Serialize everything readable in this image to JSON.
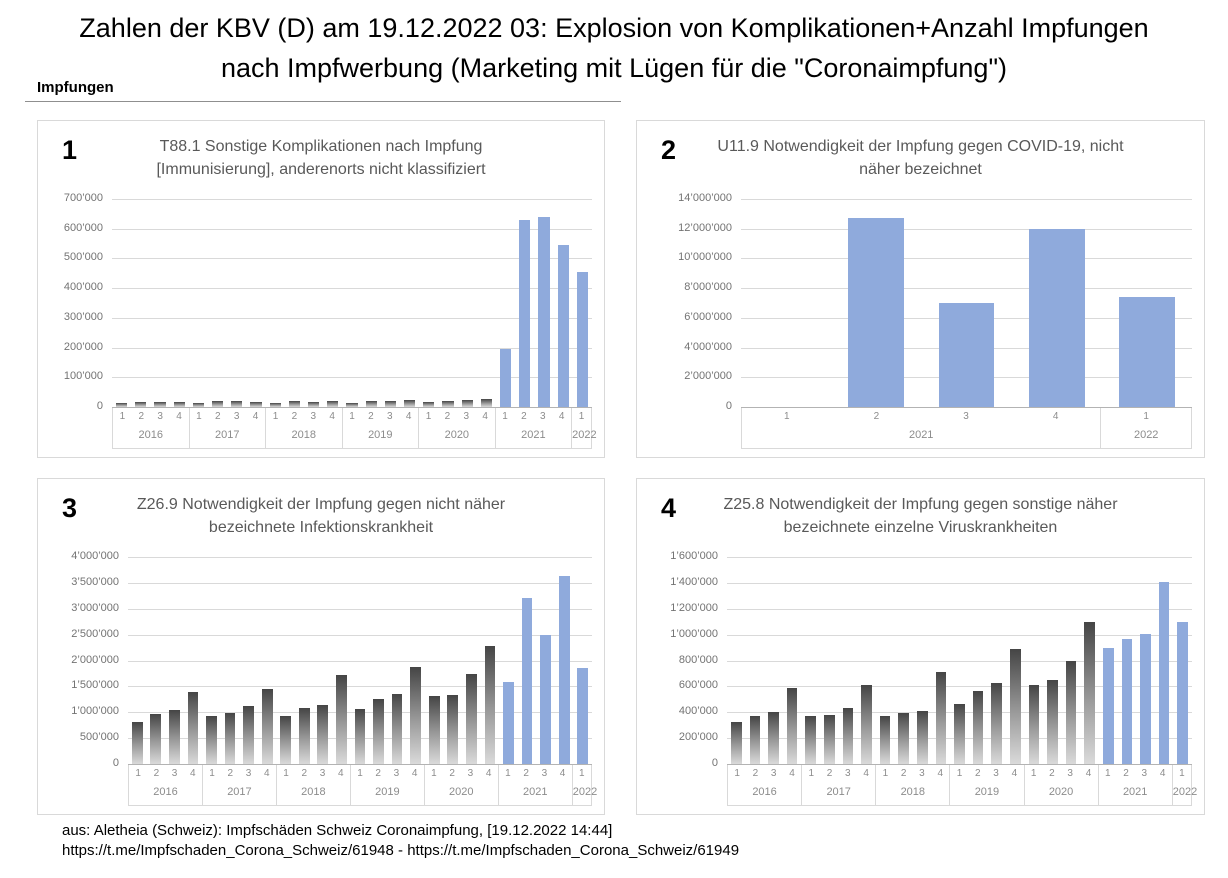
{
  "page": {
    "title_line1": "Zahlen der KBV (D) am 19.12.2022 03: Explosion von Komplikationen+Anzahl Impfungen",
    "title_line2": "nach Impfwerbung (Marketing mit Lügen für die \"Coronaimpfung\")",
    "section_label": "Impfungen",
    "footer_line1": "aus: Aletheia (Schweiz): Impfschäden Schweiz Coronaimpfung, [19.12.2022 14:44]",
    "footer_line2": "https://t.me/Impfschaden_Corona_Schweiz/61948 - https://t.me/Impfschaden_Corona_Schweiz/61949"
  },
  "colors": {
    "bar_highlight_blue": "#8faadc",
    "bar_gray_gradient_top": "#454545",
    "bar_gray_gradient_bottom": "#dadada",
    "gridline": "#d9d9d9",
    "axis_line": "#b3b3b3",
    "chart_title_text": "#595959",
    "tick_text": "#737373"
  },
  "chart_data": [
    {
      "type": "bar",
      "number": "1",
      "title": "T88.1 Sonstige Komplikationen nach Impfung [Immunisierung], anderenorts nicht klassifiziert",
      "xlabel": "",
      "ylabel": "",
      "ylim": [
        0,
        700000
      ],
      "ystep": 100000,
      "grid": true,
      "legend": false,
      "yticks": [
        "700’000",
        "600’000",
        "500’000",
        "400’000",
        "300’000",
        "200’000",
        "100’000",
        "0"
      ],
      "groups": [
        {
          "year": "2016",
          "quarters": [
            "1",
            "2",
            "3",
            "4"
          ]
        },
        {
          "year": "2017",
          "quarters": [
            "1",
            "2",
            "3",
            "4"
          ]
        },
        {
          "year": "2018",
          "quarters": [
            "1",
            "2",
            "3",
            "4"
          ]
        },
        {
          "year": "2019",
          "quarters": [
            "1",
            "2",
            "3",
            "4"
          ]
        },
        {
          "year": "2020",
          "quarters": [
            "1",
            "2",
            "3",
            "4"
          ]
        },
        {
          "year": "2021",
          "quarters": [
            "1",
            "2",
            "3",
            "4"
          ]
        },
        {
          "year": "2022",
          "quarters": [
            "1"
          ]
        }
      ],
      "values": [
        13000,
        18000,
        18000,
        17000,
        14000,
        19000,
        19000,
        17000,
        14000,
        19000,
        17000,
        21000,
        15000,
        20000,
        20000,
        22000,
        17000,
        19000,
        23000,
        28000,
        195000,
        630000,
        640000,
        545000,
        455000
      ],
      "highlight_start_index": 20
    },
    {
      "type": "bar",
      "number": "2",
      "title": "U11.9 Notwendigkeit der Impfung gegen COVID-19, nicht näher bezeichnet",
      "xlabel": "",
      "ylabel": "",
      "ylim": [
        0,
        14000000
      ],
      "ystep": 2000000,
      "grid": true,
      "legend": false,
      "yticks": [
        "14’000’000",
        "12’000’000",
        "10’000’000",
        "8’000’000",
        "6’000’000",
        "4’000’000",
        "2’000’000",
        "0"
      ],
      "groups": [
        {
          "year": "2021",
          "quarters": [
            "1",
            "2",
            "3",
            "4"
          ]
        },
        {
          "year": "2022",
          "quarters": [
            "1"
          ]
        }
      ],
      "values": [
        0,
        12700000,
        7000000,
        11950000,
        7400000
      ],
      "highlight_start_index": 0
    },
    {
      "type": "bar",
      "number": "3",
      "title": "Z26.9 Notwendigkeit der Impfung gegen nicht näher bezeichnete Infektionskrankheit",
      "xlabel": "",
      "ylabel": "",
      "ylim": [
        0,
        4000000
      ],
      "ystep": 500000,
      "grid": true,
      "legend": false,
      "yticks": [
        "4’000’000",
        "3’500’000",
        "3’000’000",
        "2’500’000",
        "2’000’000",
        "1’500’000",
        "1’000’000",
        "500’000",
        "0"
      ],
      "groups": [
        {
          "year": "2016",
          "quarters": [
            "1",
            "2",
            "3",
            "4"
          ]
        },
        {
          "year": "2017",
          "quarters": [
            "1",
            "2",
            "3",
            "4"
          ]
        },
        {
          "year": "2018",
          "quarters": [
            "1",
            "2",
            "3",
            "4"
          ]
        },
        {
          "year": "2019",
          "quarters": [
            "1",
            "2",
            "3",
            "4"
          ]
        },
        {
          "year": "2020",
          "quarters": [
            "1",
            "2",
            "3",
            "4"
          ]
        },
        {
          "year": "2021",
          "quarters": [
            "1",
            "2",
            "3",
            "4"
          ]
        },
        {
          "year": "2022",
          "quarters": [
            "1"
          ]
        }
      ],
      "values": [
        820000,
        960000,
        1040000,
        1400000,
        930000,
        990000,
        1120000,
        1450000,
        930000,
        1080000,
        1140000,
        1720000,
        1060000,
        1250000,
        1350000,
        1870000,
        1320000,
        1330000,
        1730000,
        2280000,
        1580000,
        3210000,
        2490000,
        3630000,
        1850000
      ],
      "highlight_start_index": 20
    },
    {
      "type": "bar",
      "number": "4",
      "title": "Z25.8 Notwendigkeit der Impfung gegen sonstige näher bezeichnete einzelne Viruskrankheiten",
      "xlabel": "",
      "ylabel": "",
      "ylim": [
        0,
        1600000
      ],
      "ystep": 200000,
      "grid": true,
      "legend": false,
      "yticks": [
        "1’600’000",
        "1’400’000",
        "1’200’000",
        "1’000’000",
        "800’000",
        "600’000",
        "400’000",
        "200’000",
        "0"
      ],
      "groups": [
        {
          "year": "2016",
          "quarters": [
            "1",
            "2",
            "3",
            "4"
          ]
        },
        {
          "year": "2017",
          "quarters": [
            "1",
            "2",
            "3",
            "4"
          ]
        },
        {
          "year": "2018",
          "quarters": [
            "1",
            "2",
            "3",
            "4"
          ]
        },
        {
          "year": "2019",
          "quarters": [
            "1",
            "2",
            "3",
            "4"
          ]
        },
        {
          "year": "2020",
          "quarters": [
            "1",
            "2",
            "3",
            "4"
          ]
        },
        {
          "year": "2021",
          "quarters": [
            "1",
            "2",
            "3",
            "4"
          ]
        },
        {
          "year": "2022",
          "quarters": [
            "1"
          ]
        }
      ],
      "values": [
        325000,
        368000,
        400000,
        590000,
        374000,
        382000,
        430000,
        610000,
        368000,
        392000,
        410000,
        708000,
        466000,
        563000,
        624000,
        890000,
        610000,
        650000,
        800000,
        1100000,
        895000,
        965000,
        1005000,
        1405000,
        1100000
      ],
      "highlight_start_index": 20
    }
  ]
}
